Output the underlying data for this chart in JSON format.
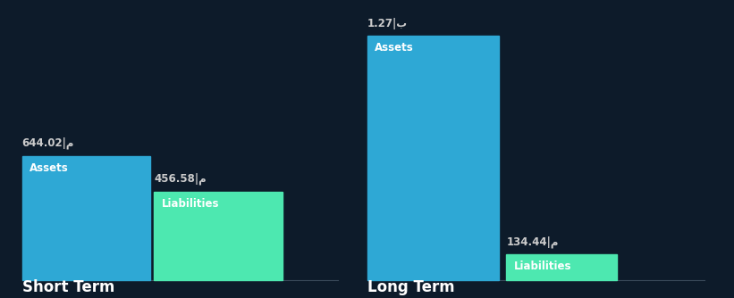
{
  "background_color": "#0d1b2a",
  "bar_color_assets": "#2ea8d5",
  "bar_color_liabilities": "#4de8b0",
  "short_term": {
    "label": "Short Term",
    "assets_value": 644.02,
    "assets_label": "644.02|م",
    "assets_text": "Assets",
    "liabilities_value": 456.58,
    "liabilities_label": "456.58|م",
    "liabilities_text": "Liabilities"
  },
  "long_term": {
    "label": "Long Term",
    "assets_value": 1270.0,
    "assets_label": "1.27|ب",
    "assets_text": "Assets",
    "liabilities_value": 134.44,
    "liabilities_label": "134.44|م",
    "liabilities_text": "Liabilities"
  },
  "text_color": "#ffffff",
  "label_color": "#cccccc",
  "group_label_fontsize": 12,
  "value_label_fontsize": 8.5,
  "bar_label_fontsize": 8.5
}
